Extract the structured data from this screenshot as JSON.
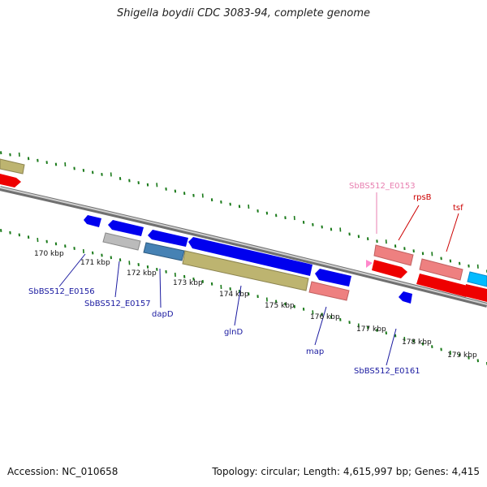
{
  "title": "Shigella boydii CDC 3083-94, complete genome",
  "footer": {
    "accession": "Accession: NC_010658",
    "stats": "Topology: circular; Length: 4,615,997 bp; Genes: 4,415"
  },
  "ticks": [
    "170 kbp",
    "171 kbp",
    "172 kbp",
    "173 kbp",
    "174 kbp",
    "175 kbp",
    "176 kbp",
    "177 kbp",
    "178 kbp",
    "179 kbp"
  ],
  "gene_labels": {
    "SbBS512_E0153": "SbBS512_E0153",
    "rpsB": "rpsB",
    "tsf": "tsf",
    "SbBS512_E0156": "SbBS512_E0156",
    "SbBS512_E0157": "SbBS512_E0157",
    "dapD": "dapD",
    "glnD": "glnD",
    "map": "map",
    "SbBS512_E0161": "SbBS512_E0161"
  },
  "colors": {
    "backbone": "#777777",
    "tick_green": "#1a7a1a",
    "label_blue": "#1a1aa0",
    "label_red": "#cc0000",
    "label_pink": "#e87fb0",
    "gene_blue": "#0000ee",
    "gene_red": "#ee0000",
    "gene_pink": "#ee8080",
    "gene_olive": "#bdb470",
    "gene_gray": "#bbbbbb",
    "gene_steel": "#4682b4",
    "gene_cyan": "#00bbff"
  }
}
